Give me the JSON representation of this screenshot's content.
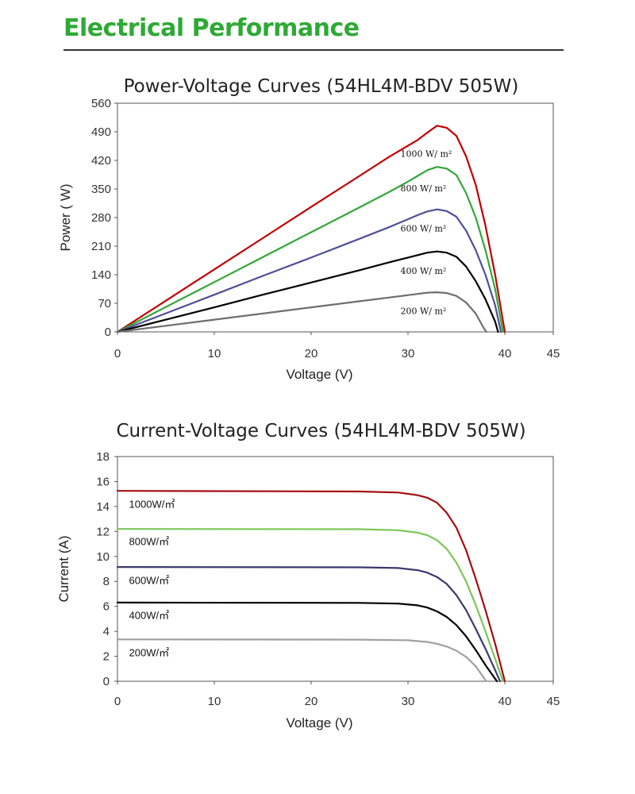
{
  "page": {
    "title": "Electrical Performance",
    "accent": "#2ea936"
  },
  "chart_data": [
    {
      "type": "line",
      "title": "Power-Voltage Curves (54HL4M-BDV 505W)",
      "xlabel": "Voltage (V)",
      "ylabel": "Power ( W)",
      "xlim": [
        0,
        45
      ],
      "ylim": [
        0,
        560
      ],
      "xticks": [
        0,
        10,
        20,
        30,
        40,
        45
      ],
      "yticks": [
        0,
        70,
        140,
        210,
        280,
        350,
        420,
        490,
        560
      ],
      "grid": false,
      "series": [
        {
          "name": "1000 W/ m²",
          "color": "#c00000",
          "points": [
            [
              0,
              0
            ],
            [
              5,
              76.5
            ],
            [
              10,
              153
            ],
            [
              15,
              229.5
            ],
            [
              20,
              306
            ],
            [
              25,
              382
            ],
            [
              28,
              428
            ],
            [
              30,
              456
            ],
            [
              31,
              470
            ],
            [
              32,
              488
            ],
            [
              33,
              505
            ],
            [
              34,
              500
            ],
            [
              35,
              480
            ],
            [
              36,
              430
            ],
            [
              37,
              360
            ],
            [
              38,
              260
            ],
            [
              39,
              140
            ],
            [
              40,
              0
            ]
          ]
        },
        {
          "name": "800 W/ m²",
          "color": "#33a63a",
          "points": [
            [
              0,
              0
            ],
            [
              5,
              61
            ],
            [
              10,
              122
            ],
            [
              15,
              183
            ],
            [
              20,
              244
            ],
            [
              25,
              305
            ],
            [
              28,
              342
            ],
            [
              30,
              368
            ],
            [
              31,
              382
            ],
            [
              32,
              396
            ],
            [
              33,
              404
            ],
            [
              34,
              400
            ],
            [
              35,
              384
            ],
            [
              36,
              340
            ],
            [
              37,
              280
            ],
            [
              38,
              200
            ],
            [
              39,
              105
            ],
            [
              39.8,
              0
            ]
          ]
        },
        {
          "name": "600 W/ m²",
          "color": "#4f4f99",
          "points": [
            [
              0,
              0
            ],
            [
              5,
              45.5
            ],
            [
              10,
              91
            ],
            [
              15,
              137
            ],
            [
              20,
              182
            ],
            [
              25,
              228
            ],
            [
              28,
              256
            ],
            [
              30,
              276
            ],
            [
              31,
              286
            ],
            [
              32,
              295
            ],
            [
              33,
              300
            ],
            [
              34,
              296
            ],
            [
              35,
              282
            ],
            [
              36,
              248
            ],
            [
              37,
              200
            ],
            [
              38,
              140
            ],
            [
              39,
              65
            ],
            [
              39.6,
              0
            ]
          ]
        },
        {
          "name": "400 W/ m²",
          "color": "#000000",
          "points": [
            [
              0,
              0
            ],
            [
              5,
              30
            ],
            [
              10,
              60
            ],
            [
              15,
              91
            ],
            [
              20,
              121
            ],
            [
              25,
              151
            ],
            [
              28,
              170
            ],
            [
              30,
              182
            ],
            [
              31,
              188
            ],
            [
              32,
              194
            ],
            [
              33,
              197
            ],
            [
              34,
              194
            ],
            [
              35,
              184
            ],
            [
              36,
              160
            ],
            [
              37,
              124
            ],
            [
              38,
              80
            ],
            [
              39,
              25
            ],
            [
              39.3,
              0
            ]
          ]
        },
        {
          "name": "200 W/ m²",
          "color": "#6e6e6e",
          "points": [
            [
              0,
              0
            ],
            [
              5,
              15
            ],
            [
              10,
              30
            ],
            [
              15,
              45
            ],
            [
              20,
              60
            ],
            [
              25,
              75
            ],
            [
              28,
              84
            ],
            [
              30,
              90
            ],
            [
              31,
              93
            ],
            [
              32,
              96
            ],
            [
              33,
              97
            ],
            [
              34,
              95
            ],
            [
              35,
              88
            ],
            [
              36,
              72
            ],
            [
              37,
              45
            ],
            [
              37.8,
              10
            ],
            [
              38.1,
              0
            ]
          ]
        }
      ]
    },
    {
      "type": "line",
      "title": "Current-Voltage Curves (54HL4M-BDV 505W)",
      "xlabel": "Voltage (V)",
      "ylabel": "Current (A)",
      "xlim": [
        0,
        45
      ],
      "ylim": [
        0,
        18
      ],
      "xticks": [
        0,
        10,
        20,
        30,
        40,
        45
      ],
      "yticks": [
        0,
        2,
        4,
        6,
        8,
        10,
        12,
        14,
        16,
        18
      ],
      "grid": false,
      "series": [
        {
          "name": "1000W/㎡",
          "color": "#a50d12",
          "points": [
            [
              0,
              15.25
            ],
            [
              25,
              15.2
            ],
            [
              29,
              15.12
            ],
            [
              31,
              14.9
            ],
            [
              32,
              14.7
            ],
            [
              33,
              14.3
            ],
            [
              34,
              13.5
            ],
            [
              35,
              12.3
            ],
            [
              36,
              10.5
            ],
            [
              37,
              8.2
            ],
            [
              38,
              5.7
            ],
            [
              39,
              3.0
            ],
            [
              40,
              0
            ]
          ]
        },
        {
          "name": "800W/㎡",
          "color": "#7cc65a",
          "points": [
            [
              0,
              12.2
            ],
            [
              25,
              12.18
            ],
            [
              29,
              12.1
            ],
            [
              31,
              11.9
            ],
            [
              32,
              11.7
            ],
            [
              33,
              11.3
            ],
            [
              34,
              10.6
            ],
            [
              35,
              9.5
            ],
            [
              36,
              8.0
            ],
            [
              37,
              6.1
            ],
            [
              38,
              4.0
            ],
            [
              39,
              1.8
            ],
            [
              39.8,
              0
            ]
          ]
        },
        {
          "name": "600W/㎡",
          "color": "#3a3a6e",
          "points": [
            [
              0,
              9.15
            ],
            [
              25,
              9.13
            ],
            [
              29,
              9.07
            ],
            [
              31,
              8.9
            ],
            [
              32,
              8.7
            ],
            [
              33,
              8.35
            ],
            [
              34,
              7.8
            ],
            [
              35,
              6.9
            ],
            [
              36,
              5.7
            ],
            [
              37,
              4.2
            ],
            [
              38,
              2.6
            ],
            [
              39,
              0.9
            ],
            [
              39.5,
              0
            ]
          ]
        },
        {
          "name": "400W/㎡",
          "color": "#000000",
          "points": [
            [
              0,
              6.3
            ],
            [
              25,
              6.28
            ],
            [
              29,
              6.22
            ],
            [
              31,
              6.08
            ],
            [
              32,
              5.9
            ],
            [
              33,
              5.6
            ],
            [
              34,
              5.15
            ],
            [
              35,
              4.5
            ],
            [
              36,
              3.6
            ],
            [
              37,
              2.5
            ],
            [
              38,
              1.3
            ],
            [
              39,
              0.2
            ],
            [
              39.2,
              0
            ]
          ]
        },
        {
          "name": "200W/㎡",
          "color": "#a0a0a0",
          "points": [
            [
              0,
              3.35
            ],
            [
              25,
              3.33
            ],
            [
              30,
              3.28
            ],
            [
              32,
              3.15
            ],
            [
              33,
              3.0
            ],
            [
              34,
              2.78
            ],
            [
              35,
              2.45
            ],
            [
              36,
              1.95
            ],
            [
              37,
              1.2
            ],
            [
              37.8,
              0.3
            ],
            [
              38.1,
              0
            ]
          ]
        }
      ]
    }
  ]
}
